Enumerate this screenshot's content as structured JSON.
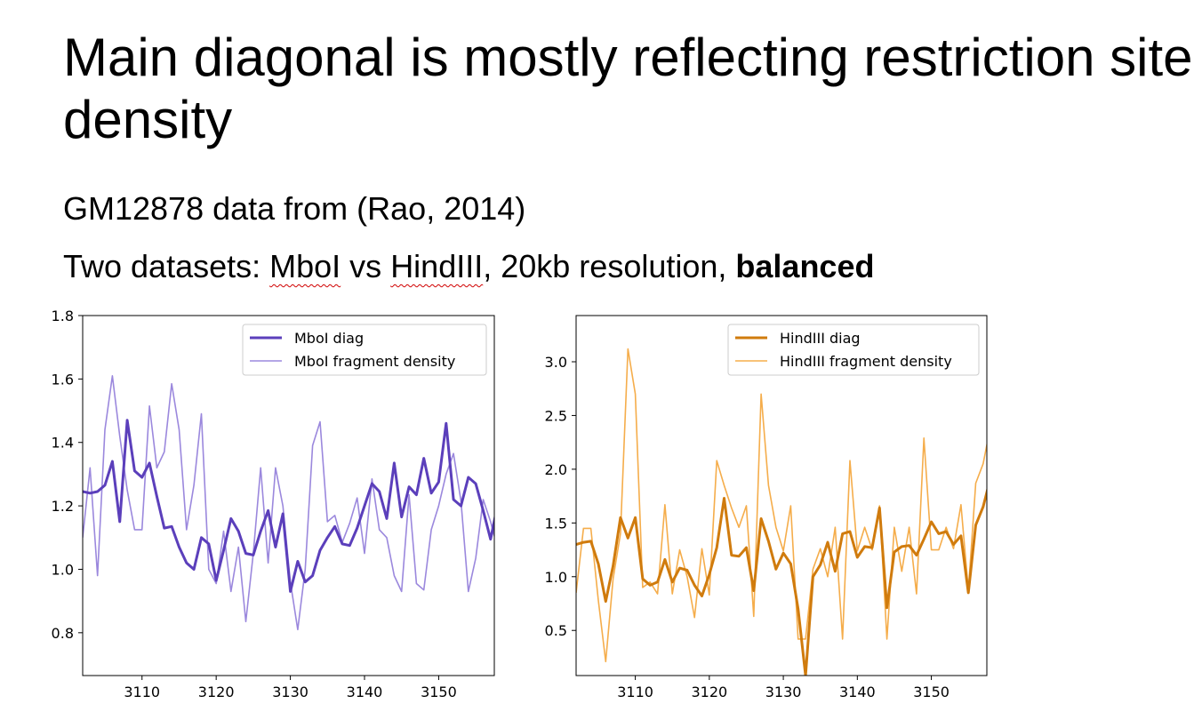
{
  "slide": {
    "title": "Main diagonal is mostly reflecting restriction site density",
    "line1": "GM12878 data from (Rao, 2014)",
    "line2_prefix": "Two datasets: ",
    "line2_mboi": "MboI",
    "line2_vs": " vs ",
    "line2_hindiii": "HindIII",
    "line2_middle": ", 20kb resolution, ",
    "line2_bold": "balanced"
  },
  "chart_data": [
    {
      "type": "line",
      "xlim": [
        3102,
        3157.5
      ],
      "ylim": [
        0.665,
        1.8
      ],
      "xticks": [
        3110,
        3120,
        3130,
        3140,
        3150
      ],
      "xtick_labels": [
        "3110",
        "3120",
        "3130",
        "3140",
        "3150"
      ],
      "yticks": [
        0.8,
        1.0,
        1.2,
        1.4,
        1.6,
        1.8
      ],
      "ytick_labels": [
        "0.8",
        "1.0",
        "1.2",
        "1.4",
        "1.6",
        "1.8"
      ],
      "legend_position": "top-right",
      "x": [
        3102,
        3103,
        3104,
        3105,
        3106,
        3107,
        3108,
        3109,
        3110,
        3111,
        3112,
        3113,
        3114,
        3115,
        3116,
        3117,
        3118,
        3119,
        3120,
        3121,
        3122,
        3123,
        3124,
        3125,
        3126,
        3127,
        3128,
        3129,
        3130,
        3131,
        3132,
        3133,
        3134,
        3135,
        3136,
        3137,
        3138,
        3139,
        3140,
        3141,
        3142,
        3143,
        3144,
        3145,
        3146,
        3147,
        3148,
        3149,
        3150,
        3151,
        3152,
        3153,
        3154,
        3155,
        3156,
        3157,
        3158
      ],
      "series": [
        {
          "name": "MboI diag",
          "color": "#5b3fbb",
          "width": 3,
          "values": [
            1.245,
            1.24,
            1.245,
            1.265,
            1.34,
            1.15,
            1.47,
            1.31,
            1.29,
            1.335,
            1.23,
            1.13,
            1.135,
            1.07,
            1.02,
            1.0,
            1.1,
            1.08,
            0.965,
            1.06,
            1.16,
            1.12,
            1.05,
            1.045,
            1.12,
            1.185,
            1.07,
            1.175,
            0.93,
            1.025,
            0.96,
            0.98,
            1.06,
            1.1,
            1.135,
            1.08,
            1.075,
            1.13,
            1.2,
            1.27,
            1.245,
            1.16,
            1.335,
            1.165,
            1.26,
            1.235,
            1.35,
            1.24,
            1.275,
            1.46,
            1.22,
            1.2,
            1.29,
            1.27,
            1.185,
            1.095,
            1.21
          ]
        },
        {
          "name": "MboI fragment density",
          "color": "#9b88dd",
          "width": 1.6,
          "values": [
            1.1,
            1.32,
            0.98,
            1.44,
            1.61,
            1.42,
            1.25,
            1.125,
            1.125,
            1.515,
            1.32,
            1.37,
            1.585,
            1.44,
            1.125,
            1.265,
            1.49,
            1.0,
            0.955,
            1.12,
            0.93,
            1.07,
            0.835,
            1.05,
            1.32,
            1.02,
            1.32,
            1.2,
            0.96,
            0.81,
            1.0,
            1.39,
            1.465,
            1.15,
            1.17,
            1.085,
            1.145,
            1.225,
            1.05,
            1.285,
            1.125,
            1.1,
            0.98,
            0.93,
            1.235,
            0.955,
            0.935,
            1.125,
            1.2,
            1.3,
            1.365,
            1.215,
            0.93,
            1.035,
            1.22,
            1.15,
            1.06
          ]
        }
      ]
    },
    {
      "type": "line",
      "xlim": [
        3102,
        3157.5
      ],
      "ylim": [
        0.08,
        3.43
      ],
      "xticks": [
        3110,
        3120,
        3130,
        3140,
        3150
      ],
      "xtick_labels": [
        "3110",
        "3120",
        "3130",
        "3140",
        "3150"
      ],
      "yticks": [
        0.5,
        1.0,
        1.5,
        2.0,
        2.5,
        3.0
      ],
      "ytick_labels": [
        "0.5",
        "1.0",
        "1.5",
        "2.0",
        "2.5",
        "3.0"
      ],
      "legend_position": "top-right",
      "x": [
        3102,
        3103,
        3104,
        3105,
        3106,
        3107,
        3108,
        3109,
        3110,
        3111,
        3112,
        3113,
        3114,
        3115,
        3116,
        3117,
        3118,
        3119,
        3120,
        3121,
        3122,
        3123,
        3124,
        3125,
        3126,
        3127,
        3128,
        3129,
        3130,
        3131,
        3132,
        3133,
        3134,
        3135,
        3136,
        3137,
        3138,
        3139,
        3140,
        3141,
        3142,
        3143,
        3144,
        3145,
        3146,
        3147,
        3148,
        3149,
        3150,
        3151,
        3152,
        3153,
        3154,
        3155,
        3156,
        3157,
        3158
      ],
      "series": [
        {
          "name": "HindIII diag",
          "color": "#d07b0d",
          "width": 3,
          "values": [
            1.3,
            1.32,
            1.33,
            1.12,
            0.77,
            1.1,
            1.55,
            1.36,
            1.55,
            0.98,
            0.92,
            0.95,
            1.16,
            0.95,
            1.08,
            1.06,
            0.92,
            0.82,
            1.02,
            1.27,
            1.73,
            1.2,
            1.19,
            1.27,
            0.87,
            1.54,
            1.33,
            1.07,
            1.22,
            1.12,
            0.7,
            0.08,
            1.0,
            1.11,
            1.32,
            1.05,
            1.4,
            1.42,
            1.18,
            1.28,
            1.27,
            1.64,
            0.71,
            1.23,
            1.28,
            1.29,
            1.2,
            1.35,
            1.51,
            1.4,
            1.42,
            1.3,
            1.38,
            0.85,
            1.48,
            1.65,
            1.92
          ]
        },
        {
          "name": "HindIII fragment density",
          "color": "#f5ad4b",
          "width": 1.6,
          "values": [
            0.85,
            1.45,
            1.45,
            0.78,
            0.21,
            0.98,
            1.4,
            3.12,
            2.7,
            0.9,
            0.95,
            0.84,
            1.67,
            0.84,
            1.25,
            1.0,
            0.62,
            1.26,
            0.83,
            2.08,
            1.85,
            1.64,
            1.46,
            1.66,
            0.63,
            2.7,
            1.85,
            1.46,
            1.24,
            1.66,
            0.42,
            0.42,
            1.07,
            1.26,
            1.0,
            1.46,
            0.42,
            2.08,
            1.24,
            1.46,
            1.25,
            1.66,
            0.42,
            1.46,
            1.05,
            1.46,
            0.84,
            2.29,
            1.25,
            1.25,
            1.46,
            1.26,
            1.67,
            0.87,
            1.87,
            2.05,
            2.4
          ]
        }
      ]
    }
  ]
}
